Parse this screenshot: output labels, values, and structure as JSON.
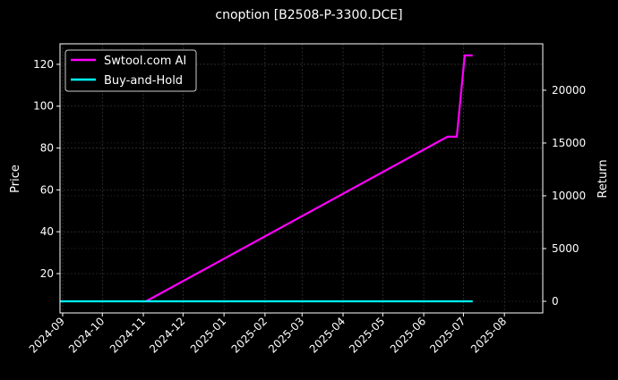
{
  "chart_data": {
    "type": "line",
    "title": "cnoption [B2508-P-3300.DCE]",
    "ylabel": "Price",
    "y2label": "Return",
    "xlim": [
      "2024-08-30",
      "2025-08-30"
    ],
    "ylim": [
      1.2,
      129.8
    ],
    "y2lim": [
      -1100,
      24400
    ],
    "xticks": [
      "2024-09",
      "2024-10",
      "2024-11",
      "2024-12",
      "2025-01",
      "2025-02",
      "2025-03",
      "2025-04",
      "2025-05",
      "2025-06",
      "2025-07",
      "2025-08"
    ],
    "yticks": [
      20,
      40,
      60,
      80,
      100,
      120
    ],
    "y2ticks": [
      0,
      5000,
      10000,
      15000,
      20000
    ],
    "grid": true,
    "legend_position": "top-left",
    "background": "#000000",
    "series": [
      {
        "name": "Swtool.com AI",
        "axis": "right",
        "color": "#ff00ff",
        "x": [
          "2024-11-03",
          "2025-06-19",
          "2025-06-26",
          "2025-07-02",
          "2025-07-08"
        ],
        "y": [
          0,
          15600,
          15600,
          23300,
          23300
        ]
      },
      {
        "name": "Buy-and-Hold",
        "axis": "right",
        "color": "#00ffff",
        "x": [
          "2024-08-30",
          "2025-07-08"
        ],
        "y": [
          0,
          0
        ]
      }
    ]
  }
}
